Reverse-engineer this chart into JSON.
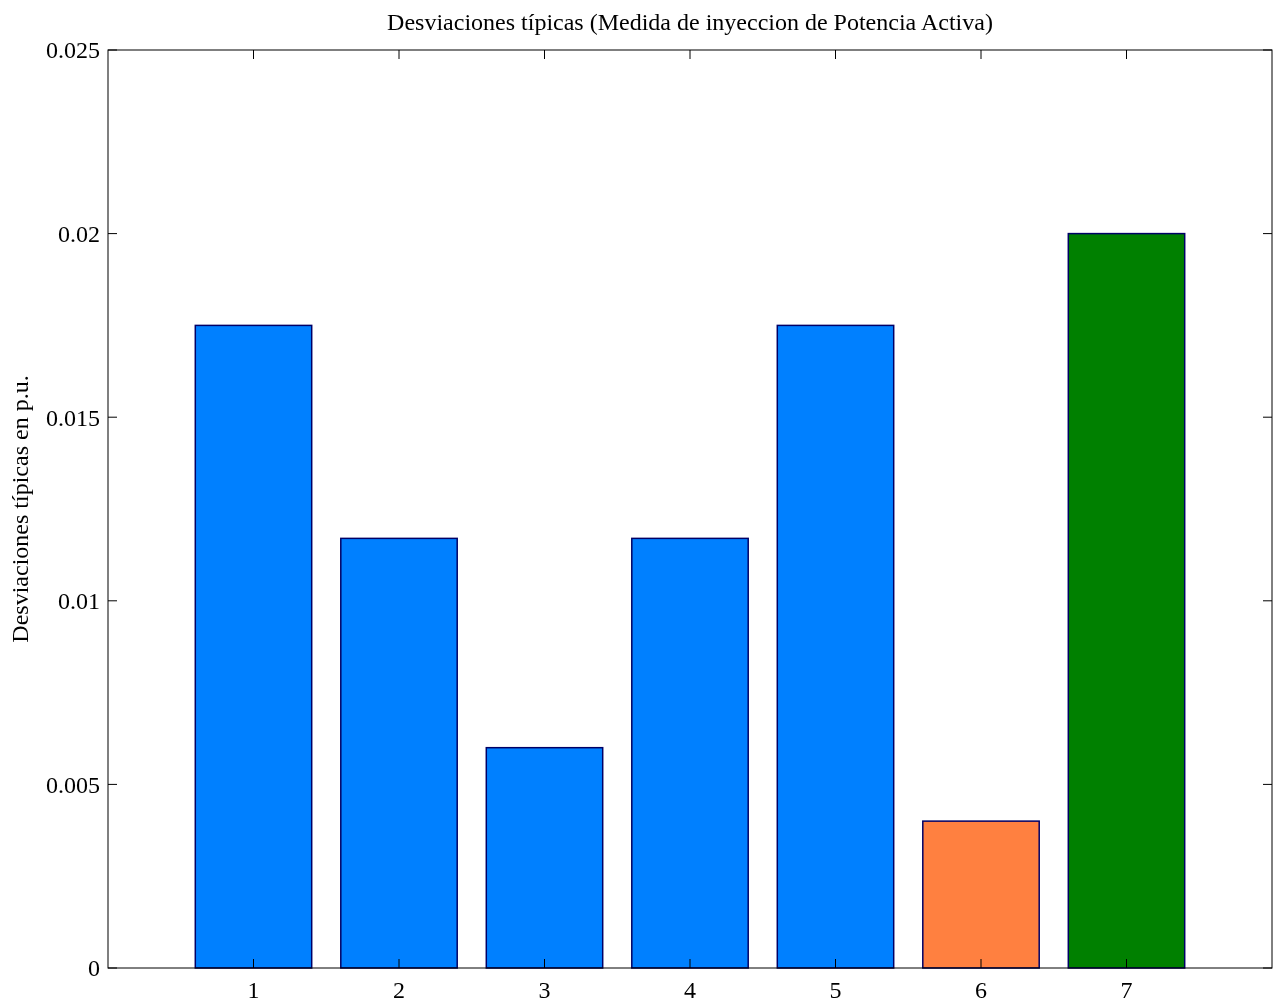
{
  "chart_data": {
    "type": "bar",
    "title": "Desviaciones típicas (Medida de inyeccion de Potencia Activa)",
    "ylabel": "Desviaciones típicas en p.u.",
    "x": [
      1,
      2,
      3,
      4,
      5,
      6,
      7
    ],
    "values": [
      0.0175,
      0.0117,
      0.006,
      0.0117,
      0.0175,
      0.004,
      0.02
    ],
    "colors": [
      "#0080ff",
      "#0080ff",
      "#0080ff",
      "#0080ff",
      "#0080ff",
      "#ff8040",
      "#008000"
    ],
    "xlim": [
      0,
      8
    ],
    "xticks": [
      1,
      2,
      3,
      4,
      5,
      6,
      7
    ],
    "ylim": [
      0,
      0.025
    ],
    "yticks": [
      0,
      0.005,
      0.01,
      0.015,
      0.02,
      0.025
    ],
    "grid": false
  }
}
